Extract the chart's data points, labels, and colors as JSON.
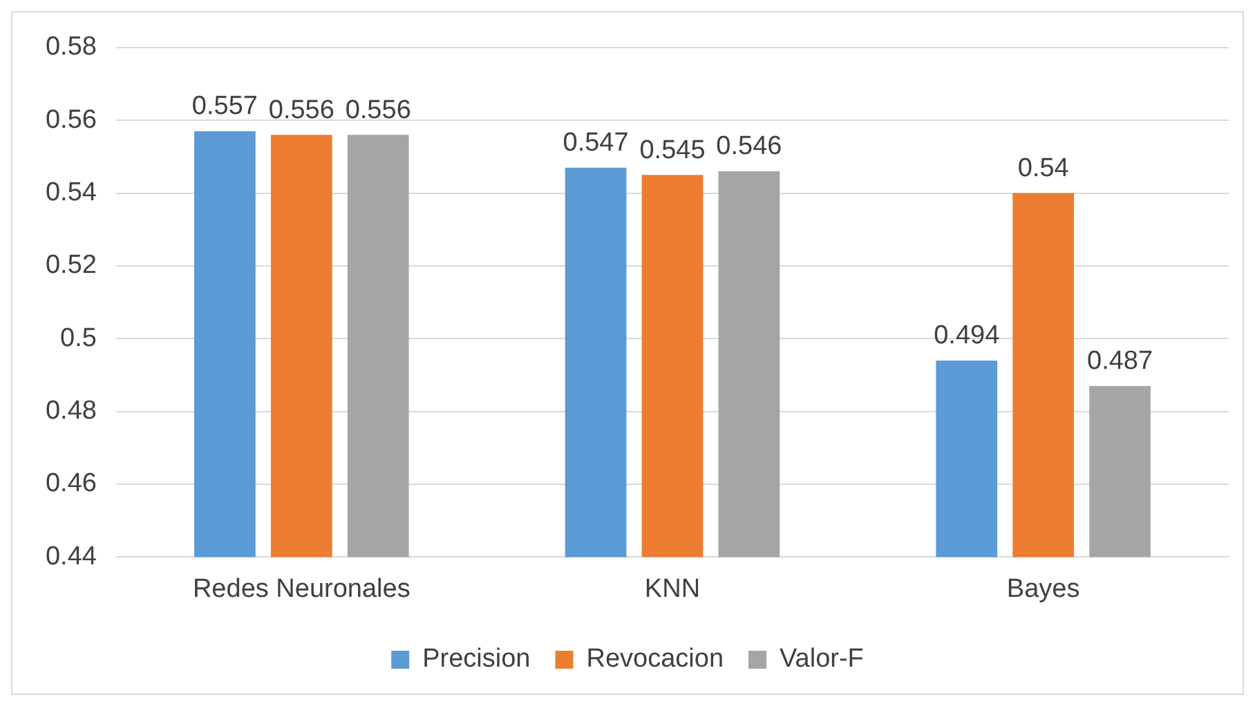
{
  "chart_data": {
    "type": "bar",
    "categories": [
      "Redes Neuronales",
      "KNN",
      "Bayes"
    ],
    "series": [
      {
        "name": "Precision",
        "color": "#5b9bd5",
        "values": [
          0.557,
          0.547,
          0.494
        ]
      },
      {
        "name": "Revocacion",
        "color": "#ed7d31",
        "values": [
          0.556,
          0.545,
          0.54
        ]
      },
      {
        "name": "Valor-F",
        "color": "#a5a5a5",
        "values": [
          0.556,
          0.546,
          0.487
        ]
      }
    ],
    "ylim": [
      0.44,
      0.58
    ],
    "yticks": [
      0.44,
      0.46,
      0.48,
      0.5,
      0.52,
      0.54,
      0.56,
      0.58
    ],
    "grid": "y",
    "legend": "bottom",
    "data_labels": true
  }
}
